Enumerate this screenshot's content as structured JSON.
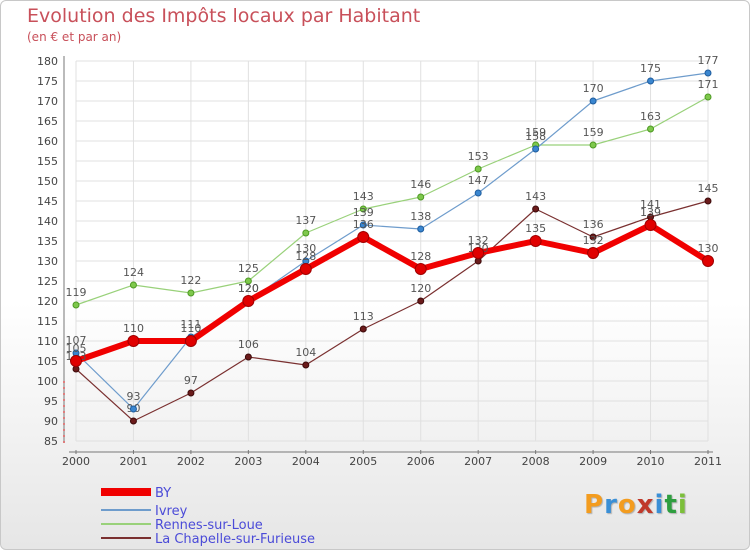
{
  "title": "Evolution des Impôts locaux par Habitant",
  "subtitle": "(en € et par an)",
  "brand": {
    "letters": [
      "P",
      "r",
      "o",
      "x",
      "i",
      "t",
      "i"
    ],
    "colors": [
      "#f39c1f",
      "#3a8fd6",
      "#f39c1f",
      "#c0392b",
      "#3a8fd6",
      "#2e9e3f",
      "#7cbf3a"
    ]
  },
  "chart_data": {
    "type": "line",
    "title": "Evolution des Impôts locaux par Habitant",
    "subtitle": "(en € et par an)",
    "xlabel": "",
    "ylabel": "",
    "categories": [
      "2000",
      "2001",
      "2002",
      "2003",
      "2004",
      "2005",
      "2006",
      "2007",
      "2008",
      "2009",
      "2010",
      "2011"
    ],
    "yticks": [
      85,
      90,
      95,
      100,
      105,
      110,
      115,
      120,
      125,
      130,
      135,
      140,
      145,
      150,
      155,
      160,
      165,
      170,
      175,
      180
    ],
    "ylim": [
      85,
      180
    ],
    "legend_position": "bottom-left",
    "series": [
      {
        "name": "BY",
        "color": "#f00000",
        "values": [
          105,
          110,
          110,
          120,
          128,
          136,
          128,
          132,
          135,
          132,
          139,
          130
        ],
        "labels": [
          "105",
          "110",
          "110",
          "120",
          "128",
          "136",
          "128",
          "132",
          "135",
          "132",
          "139",
          "130"
        ]
      },
      {
        "name": "Ivrey",
        "color": "#6e9ccc",
        "values": [
          107,
          93,
          111,
          120,
          130,
          139,
          138,
          147,
          158,
          170,
          175,
          177
        ],
        "labels": [
          "107",
          "93",
          "111",
          "120",
          "130",
          "139",
          "138",
          "147",
          "158",
          "170",
          "175",
          "177"
        ]
      },
      {
        "name": "Rennes-sur-Loue",
        "color": "#99d17a",
        "values": [
          119,
          124,
          122,
          125,
          137,
          143,
          146,
          153,
          159,
          159,
          163,
          171
        ],
        "labels": [
          "119",
          "124",
          "122",
          "125",
          "137",
          "143",
          "146",
          "153",
          "159",
          "159",
          "163",
          "171"
        ]
      },
      {
        "name": "La Chapelle-sur-Furieuse",
        "color": "#7a3030",
        "values": [
          103,
          90,
          97,
          106,
          104,
          113,
          120,
          130,
          143,
          136,
          141,
          145
        ],
        "labels": [
          "103",
          "90",
          "97",
          "106",
          "104",
          "113",
          "120",
          "130",
          "143",
          "136",
          "141",
          "145"
        ]
      }
    ]
  }
}
